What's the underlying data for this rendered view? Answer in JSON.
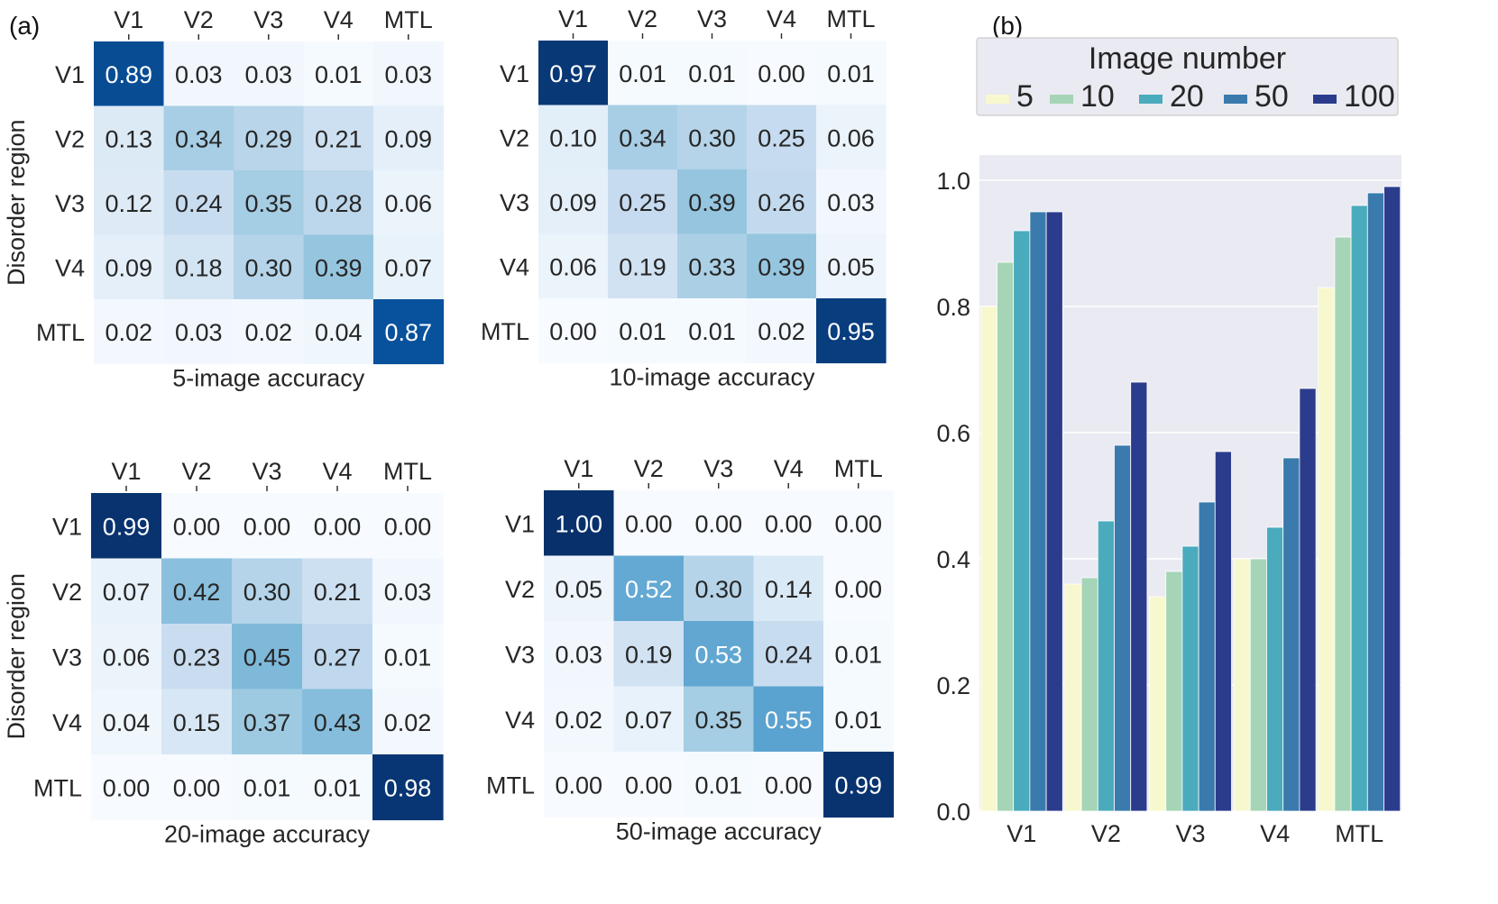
{
  "panel_labels": {
    "a": "(a)",
    "b": "(b)"
  },
  "chart_data": [
    {
      "type": "heatmap",
      "title": "5-image accuracy",
      "ylabel": "Disorder region",
      "x_labels": [
        "V1",
        "V2",
        "V3",
        "V4",
        "MTL"
      ],
      "y_labels": [
        "V1",
        "V2",
        "V3",
        "V4",
        "MTL"
      ],
      "values": [
        [
          0.89,
          0.03,
          0.03,
          0.01,
          0.03
        ],
        [
          0.13,
          0.34,
          0.29,
          0.21,
          0.09
        ],
        [
          0.12,
          0.24,
          0.35,
          0.28,
          0.06
        ],
        [
          0.09,
          0.18,
          0.3,
          0.39,
          0.07
        ],
        [
          0.02,
          0.03,
          0.02,
          0.04,
          0.87
        ]
      ],
      "display": [
        [
          "0.89",
          "0.03",
          "0.03",
          "0.01",
          "0.03"
        ],
        [
          "0.13",
          "0.34",
          "0.29",
          "0.21",
          "0.09"
        ],
        [
          "0.12",
          "0.24",
          "0.35",
          "0.28",
          "0.06"
        ],
        [
          "0.09",
          "0.18",
          "0.30",
          "0.39",
          "0.07"
        ],
        [
          "0.02",
          "0.03",
          "0.02",
          "0.04",
          "0.87"
        ]
      ]
    },
    {
      "type": "heatmap",
      "title": "10-image accuracy",
      "ylabel": "",
      "x_labels": [
        "V1",
        "V2",
        "V3",
        "V4",
        "MTL"
      ],
      "y_labels": [
        "V1",
        "V2",
        "V3",
        "V4",
        "MTL"
      ],
      "values": [
        [
          0.97,
          0.01,
          0.01,
          0.0,
          0.01
        ],
        [
          0.1,
          0.34,
          0.3,
          0.25,
          0.06
        ],
        [
          0.09,
          0.25,
          0.39,
          0.26,
          0.03
        ],
        [
          0.06,
          0.19,
          0.33,
          0.39,
          0.05
        ],
        [
          0.0,
          0.01,
          0.01,
          0.02,
          0.95
        ]
      ],
      "display": [
        [
          "0.97",
          "0.01",
          "0.01",
          "0.00",
          "0.01"
        ],
        [
          "0.10",
          "0.34",
          "0.30",
          "0.25",
          "0.06"
        ],
        [
          "0.09",
          "0.25",
          "0.39",
          "0.26",
          "0.03"
        ],
        [
          "0.06",
          "0.19",
          "0.33",
          "0.39",
          "0.05"
        ],
        [
          "0.00",
          "0.01",
          "0.01",
          "0.02",
          "0.95"
        ]
      ]
    },
    {
      "type": "heatmap",
      "title": "20-image accuracy",
      "ylabel": "Disorder region",
      "x_labels": [
        "V1",
        "V2",
        "V3",
        "V4",
        "MTL"
      ],
      "y_labels": [
        "V1",
        "V2",
        "V3",
        "V4",
        "MTL"
      ],
      "values": [
        [
          0.99,
          0.0,
          0.0,
          0.0,
          0.0
        ],
        [
          0.07,
          0.42,
          0.3,
          0.21,
          0.03
        ],
        [
          0.06,
          0.23,
          0.45,
          0.27,
          0.01
        ],
        [
          0.04,
          0.15,
          0.37,
          0.43,
          0.02
        ],
        [
          0.0,
          0.0,
          0.01,
          0.01,
          0.98
        ]
      ],
      "display": [
        [
          "0.99",
          "0.00",
          "0.00",
          "0.00",
          "0.00"
        ],
        [
          "0.07",
          "0.42",
          "0.30",
          "0.21",
          "0.03"
        ],
        [
          "0.06",
          "0.23",
          "0.45",
          "0.27",
          "0.01"
        ],
        [
          "0.04",
          "0.15",
          "0.37",
          "0.43",
          "0.02"
        ],
        [
          "0.00",
          "0.00",
          "0.01",
          "0.01",
          "0.98"
        ]
      ]
    },
    {
      "type": "heatmap",
      "title": "50-image accuracy",
      "ylabel": "",
      "x_labels": [
        "V1",
        "V2",
        "V3",
        "V4",
        "MTL"
      ],
      "y_labels": [
        "V1",
        "V2",
        "V3",
        "V4",
        "MTL"
      ],
      "values": [
        [
          1.0,
          0.0,
          0.0,
          0.0,
          0.0
        ],
        [
          0.05,
          0.52,
          0.3,
          0.14,
          0.0
        ],
        [
          0.03,
          0.19,
          0.53,
          0.24,
          0.01
        ],
        [
          0.02,
          0.07,
          0.35,
          0.55,
          0.01
        ],
        [
          0.0,
          0.0,
          0.01,
          0.0,
          0.99
        ]
      ],
      "display": [
        [
          "1.00",
          "0.00",
          "0.00",
          "0.00",
          "0.00"
        ],
        [
          "0.05",
          "0.52",
          "0.30",
          "0.14",
          "0.00"
        ],
        [
          "0.03",
          "0.19",
          "0.53",
          "0.24",
          "0.01"
        ],
        [
          "0.02",
          "0.07",
          "0.35",
          "0.55",
          "0.01"
        ],
        [
          "0.00",
          "0.00",
          "0.01",
          "0.00",
          "0.99"
        ]
      ]
    },
    {
      "type": "bar",
      "title": "",
      "xlabel": "",
      "ylabel": "",
      "categories": [
        "V1",
        "V2",
        "V3",
        "V4",
        "MTL"
      ],
      "ylim": [
        0,
        1.04
      ],
      "yticks": [
        "0.0",
        "0.2",
        "0.4",
        "0.6",
        "0.8",
        "1.0"
      ],
      "legend_title": "Image number",
      "legend_position": "top",
      "grid": true,
      "series": [
        {
          "name": "5",
          "color": "#f8f8cf",
          "values": [
            0.8,
            0.36,
            0.34,
            0.4,
            0.83
          ]
        },
        {
          "name": "10",
          "color": "#a5d5b6",
          "values": [
            0.87,
            0.37,
            0.38,
            0.4,
            0.91
          ]
        },
        {
          "name": "20",
          "color": "#4aabbd",
          "values": [
            0.92,
            0.46,
            0.42,
            0.45,
            0.96
          ]
        },
        {
          "name": "50",
          "color": "#3a7aac",
          "values": [
            0.95,
            0.58,
            0.49,
            0.56,
            0.98
          ]
        },
        {
          "name": "100",
          "color": "#2c3c8c",
          "values": [
            0.95,
            0.68,
            0.57,
            0.67,
            0.99
          ]
        }
      ]
    }
  ]
}
